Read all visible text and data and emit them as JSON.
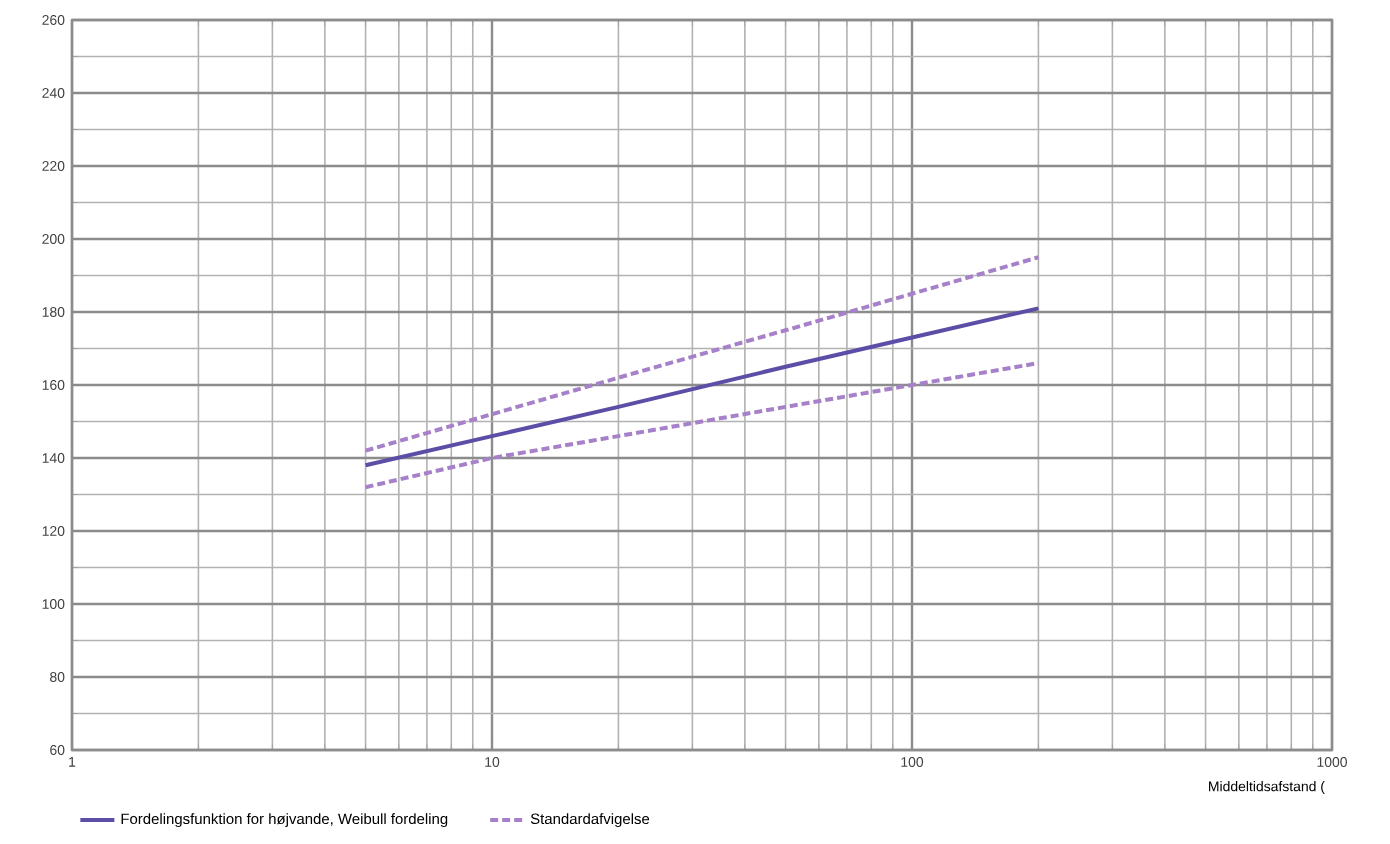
{
  "chart_data": {
    "type": "line",
    "xlabel": "Middeltidsafstand (",
    "log": "x",
    "grid": true,
    "legend": "bottom",
    "x": [
      5,
      10,
      20,
      50,
      100,
      200
    ],
    "series": [
      {
        "name": "Fordelingsfunktion for højvande, Weibull fordeling",
        "color": "#5a4ea6",
        "line_style": "solid",
        "values": [
          138,
          146,
          154,
          165,
          173,
          181
        ]
      },
      {
        "name": "Standardafvigelse",
        "color": "#a680c8",
        "line_style": "dashed",
        "values": [
          142,
          152,
          162,
          175,
          185,
          195
        ]
      },
      {
        "color": "#a680c8",
        "line_style": "dashed",
        "values": [
          132,
          140,
          146,
          154,
          160,
          166
        ]
      }
    ],
    "xlim": [
      1,
      1000
    ],
    "ylim": [
      60,
      260
    ],
    "xticks": [
      1,
      10,
      100,
      1000
    ],
    "yticks": [
      60,
      80,
      100,
      120,
      140,
      160,
      180,
      200,
      220,
      240,
      260
    ]
  }
}
